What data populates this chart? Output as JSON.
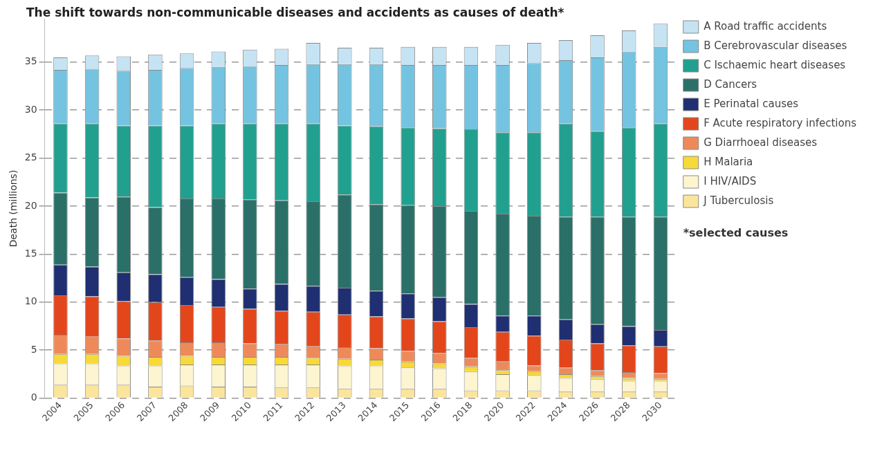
{
  "chart_data": {
    "type": "bar",
    "title": "The shift towards non-communicable diseases and accidents as causes of death*",
    "ylabel": "Death (millions)",
    "annotations": [
      "*selected causes"
    ],
    "categories": [
      "2004",
      "2005",
      "2006",
      "2007",
      "2008",
      "2009",
      "2010",
      "2011",
      "2012",
      "2013",
      "2014",
      "2015",
      "2016",
      "2018",
      "2020",
      "2022",
      "2024",
      "2026",
      "2028",
      "2030"
    ],
    "stacked": true,
    "ylim": [
      0,
      39.5
    ],
    "yticks": [
      0,
      5,
      10,
      15,
      20,
      25,
      30,
      35
    ],
    "grid": "y",
    "legend": "right",
    "series": [
      {
        "name": "J Tuberculosis",
        "color": "#fbe49b",
        "values": [
          1.4,
          1.4,
          1.4,
          1.2,
          1.3,
          1.2,
          1.2,
          1.1,
          1.1,
          1.0,
          1.0,
          1.0,
          1.0,
          0.8,
          0.8,
          0.8,
          0.7,
          0.7,
          0.7,
          0.7
        ]
      },
      {
        "name": "I HIV/AIDS",
        "color": "#fdf4d0",
        "values": [
          2.2,
          2.2,
          2.0,
          2.2,
          2.2,
          2.3,
          2.3,
          2.4,
          2.4,
          2.4,
          2.4,
          2.2,
          2.1,
          2.0,
          1.7,
          1.6,
          1.4,
          1.3,
          1.1,
          1.1
        ]
      },
      {
        "name": "H Malaria",
        "color": "#f7d937",
        "values": [
          1.0,
          1.0,
          1.0,
          0.9,
          0.9,
          0.8,
          0.8,
          0.8,
          0.7,
          0.7,
          0.6,
          0.6,
          0.5,
          0.5,
          0.4,
          0.4,
          0.4,
          0.3,
          0.3,
          0.2
        ]
      },
      {
        "name": "G Diarrhoeal diseases",
        "color": "#ee8a5a",
        "values": [
          2.0,
          1.8,
          1.8,
          1.7,
          1.4,
          1.5,
          1.4,
          1.3,
          1.2,
          1.2,
          1.2,
          1.1,
          1.1,
          0.9,
          0.9,
          0.6,
          0.7,
          0.6,
          0.6,
          0.6
        ]
      },
      {
        "name": "F Acute respiratory infections",
        "color": "#e4461b",
        "values": [
          4.1,
          4.2,
          3.9,
          4.0,
          3.9,
          3.7,
          3.6,
          3.5,
          3.6,
          3.4,
          3.3,
          3.4,
          3.3,
          3.2,
          3.1,
          3.1,
          2.9,
          2.8,
          2.8,
          2.8
        ]
      },
      {
        "name": "E Perinatal causes",
        "color": "#1f2f72",
        "values": [
          3.2,
          3.1,
          3.0,
          2.9,
          2.9,
          2.9,
          2.1,
          2.8,
          2.7,
          2.8,
          2.7,
          2.6,
          2.5,
          2.4,
          1.7,
          2.1,
          2.1,
          2.0,
          2.0,
          1.7
        ]
      },
      {
        "name": "D Cancers",
        "color": "#2a7068",
        "values": [
          7.5,
          7.2,
          7.9,
          7.0,
          8.2,
          8.4,
          9.3,
          8.7,
          8.8,
          9.7,
          9.0,
          9.2,
          9.5,
          9.7,
          10.6,
          10.4,
          10.7,
          11.2,
          11.4,
          11.8
        ]
      },
      {
        "name": "C Ischaemic heart diseases",
        "color": "#22a08f",
        "values": [
          7.2,
          7.7,
          7.4,
          8.5,
          7.6,
          7.8,
          7.9,
          8.0,
          8.1,
          7.2,
          8.1,
          8.1,
          8.1,
          8.5,
          8.5,
          8.7,
          9.7,
          8.9,
          9.3,
          9.7
        ]
      },
      {
        "name": "B Cerebrovascular diseases",
        "color": "#74c3e0",
        "values": [
          5.6,
          5.7,
          5.7,
          5.8,
          6.0,
          5.9,
          6.0,
          6.1,
          6.2,
          6.4,
          6.5,
          6.5,
          6.6,
          6.7,
          7.0,
          7.2,
          6.6,
          7.7,
          7.9,
          8.0
        ]
      },
      {
        "name": "A Road traffic accidents",
        "color": "#c5e3f3",
        "values": [
          1.3,
          1.4,
          1.5,
          1.6,
          1.5,
          1.6,
          1.7,
          1.7,
          2.2,
          1.7,
          1.7,
          1.9,
          1.9,
          1.9,
          2.1,
          2.1,
          2.1,
          2.3,
          2.2,
          2.4
        ]
      }
    ]
  }
}
